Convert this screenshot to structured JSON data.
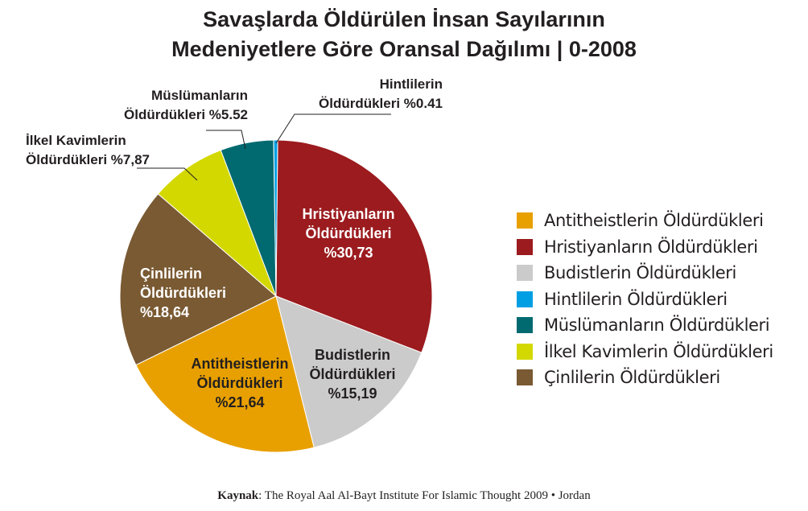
{
  "title_lines": [
    "Savaşlarda Öldürülen İnsan Sayılarının",
    "Medeniyetlere Göre Oransal Dağılımı | 0-2008"
  ],
  "source": {
    "label": "Kaynak",
    "text": ": The Royal Aal Al-Bayt Institute For Islamic Thought 2009 • Jordan"
  },
  "chart_data": {
    "type": "pie",
    "title": "Savaşlarda Öldürülen İnsan Sayılarının Medeniyetlere Göre Oransal Dağılımı | 0-2008",
    "slices": [
      {
        "name": "Hristiyanların Öldürdükleri",
        "value": 30.73,
        "color": "#9b1b1e",
        "label_lines": [
          "Hristiyanların",
          "Öldürdükleri",
          "%30,73"
        ],
        "label_color": "#ffffff",
        "label_placement": "inside"
      },
      {
        "name": "Budistlerin Öldürdükleri",
        "value": 15.19,
        "color": "#cbcbcb",
        "label_lines": [
          "Budistlerin",
          "Öldürdükleri",
          "%15,19"
        ],
        "label_color": "#231f20",
        "label_placement": "inside"
      },
      {
        "name": "Antitheistlerin Öldürdükleri",
        "value": 21.64,
        "color": "#e8a000",
        "label_lines": [
          "Antitheistlerin",
          "Öldürdükleri",
          "%21,64"
        ],
        "label_color": "#231f20",
        "label_placement": "inside"
      },
      {
        "name": "Çinlilerin Öldürdükleri",
        "value": 18.64,
        "color": "#7a5a33",
        "label_lines": [
          "Çinlilerin",
          "Öldürdükleri",
          "%18,64"
        ],
        "label_color": "#ffffff",
        "label_placement": "inside"
      },
      {
        "name": "İlkel Kavimlerin Öldürdükleri",
        "value": 7.87,
        "color": "#d3d800",
        "label_lines": [
          "İlkel Kavimlerin",
          "Öldürdükleri %7,87"
        ],
        "label_color": "#231f20",
        "label_placement": "outside"
      },
      {
        "name": "Müslümanların Öldürdükleri",
        "value": 5.52,
        "color": "#006a70",
        "label_lines": [
          "Müslümanların",
          "Öldürdükleri %5.52"
        ],
        "label_color": "#231f20",
        "label_placement": "outside"
      },
      {
        "name": "Hintlilerin Öldürdükleri",
        "value": 0.41,
        "color": "#009fe3",
        "label_lines": [
          "Hintlilerin",
          "Öldürdükleri %0.41"
        ],
        "label_color": "#231f20",
        "label_placement": "outside"
      }
    ],
    "legend": {
      "placement": "right",
      "entries": [
        {
          "name": "Antitheistlerin Öldürdükleri",
          "color": "#e8a000"
        },
        {
          "name": "Hristiyanların Öldürdükleri",
          "color": "#9b1b1e"
        },
        {
          "name": "Budistlerin Öldürdükleri",
          "color": "#cbcbcb"
        },
        {
          "name": "Hintlilerin Öldürdükleri",
          "color": "#009fe3"
        },
        {
          "name": "Müslümanların Öldürdükleri",
          "color": "#006a70"
        },
        {
          "name": "İlkel Kavimlerin Öldürdükleri",
          "color": "#d3d800"
        },
        {
          "name": "Çinlilerin Öldürdükleri",
          "color": "#7a5a33"
        }
      ]
    }
  }
}
